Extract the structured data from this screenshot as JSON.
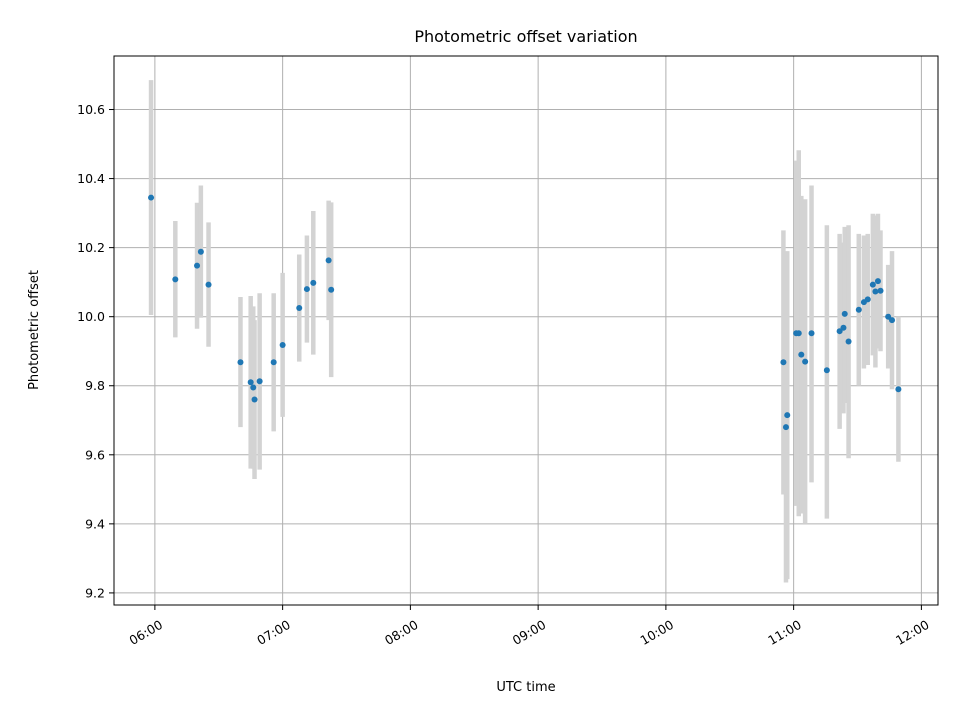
{
  "chart_data": {
    "type": "scatter",
    "title": "Photometric offset variation",
    "xlabel": "UTC time",
    "ylabel": "Photometric offset",
    "x_unit": "hours UTC",
    "xlim": [
      5.68,
      12.13
    ],
    "ylim": [
      9.165,
      10.755
    ],
    "x_ticks": [
      {
        "value": 6,
        "label": "06:00"
      },
      {
        "value": 7,
        "label": "07:00"
      },
      {
        "value": 8,
        "label": "08:00"
      },
      {
        "value": 9,
        "label": "09:00"
      },
      {
        "value": 10,
        "label": "10:00"
      },
      {
        "value": 11,
        "label": "11:00"
      },
      {
        "value": 12,
        "label": "12:00"
      }
    ],
    "y_ticks": [
      {
        "value": 9.2,
        "label": "9.2"
      },
      {
        "value": 9.4,
        "label": "9.4"
      },
      {
        "value": 9.6,
        "label": "9.6"
      },
      {
        "value": 9.8,
        "label": "9.8"
      },
      {
        "value": 10.0,
        "label": "10.0"
      },
      {
        "value": 10.2,
        "label": "10.2"
      },
      {
        "value": 10.4,
        "label": "10.4"
      },
      {
        "value": 10.6,
        "label": "10.6"
      }
    ],
    "grid": true,
    "point_color": "#1f77b4",
    "errorbar_color": "#d3d3d3",
    "points": [
      {
        "x": 5.97,
        "y": 10.345,
        "lo": 10.005,
        "hi": 10.685
      },
      {
        "x": 6.16,
        "y": 10.108,
        "lo": 9.94,
        "hi": 10.277
      },
      {
        "x": 6.33,
        "y": 10.148,
        "lo": 9.965,
        "hi": 10.33
      },
      {
        "x": 6.36,
        "y": 10.188,
        "lo": 9.997,
        "hi": 10.38
      },
      {
        "x": 6.42,
        "y": 10.093,
        "lo": 9.913,
        "hi": 10.273
      },
      {
        "x": 6.67,
        "y": 9.868,
        "lo": 9.68,
        "hi": 10.057
      },
      {
        "x": 6.75,
        "y": 9.81,
        "lo": 9.56,
        "hi": 10.06
      },
      {
        "x": 6.77,
        "y": 9.795,
        "lo": 9.56,
        "hi": 10.03
      },
      {
        "x": 6.78,
        "y": 9.76,
        "lo": 9.53,
        "hi": 9.99
      },
      {
        "x": 6.82,
        "y": 9.813,
        "lo": 9.557,
        "hi": 10.068
      },
      {
        "x": 6.93,
        "y": 9.868,
        "lo": 9.668,
        "hi": 10.068
      },
      {
        "x": 7.0,
        "y": 9.918,
        "lo": 9.71,
        "hi": 10.127
      },
      {
        "x": 7.13,
        "y": 10.025,
        "lo": 9.87,
        "hi": 10.18
      },
      {
        "x": 7.19,
        "y": 10.08,
        "lo": 9.925,
        "hi": 10.235
      },
      {
        "x": 7.24,
        "y": 10.098,
        "lo": 9.89,
        "hi": 10.306
      },
      {
        "x": 7.36,
        "y": 10.163,
        "lo": 9.99,
        "hi": 10.336
      },
      {
        "x": 7.38,
        "y": 10.078,
        "lo": 9.825,
        "hi": 10.331
      },
      {
        "x": 10.92,
        "y": 9.868,
        "lo": 9.485,
        "hi": 10.25
      },
      {
        "x": 10.94,
        "y": 9.68,
        "lo": 9.23,
        "hi": 10.13
      },
      {
        "x": 10.95,
        "y": 9.715,
        "lo": 9.24,
        "hi": 10.19
      },
      {
        "x": 11.02,
        "y": 9.952,
        "lo": 9.452,
        "hi": 10.452
      },
      {
        "x": 11.04,
        "y": 9.952,
        "lo": 9.422,
        "hi": 10.482
      },
      {
        "x": 11.06,
        "y": 9.89,
        "lo": 9.43,
        "hi": 10.35
      },
      {
        "x": 11.09,
        "y": 9.87,
        "lo": 9.4,
        "hi": 10.34
      },
      {
        "x": 11.14,
        "y": 9.952,
        "lo": 9.52,
        "hi": 10.38
      },
      {
        "x": 11.26,
        "y": 9.845,
        "lo": 9.415,
        "hi": 10.265
      },
      {
        "x": 11.36,
        "y": 9.958,
        "lo": 9.675,
        "hi": 10.24
      },
      {
        "x": 11.39,
        "y": 9.968,
        "lo": 9.72,
        "hi": 10.215
      },
      {
        "x": 11.4,
        "y": 10.008,
        "lo": 9.75,
        "hi": 10.26
      },
      {
        "x": 11.43,
        "y": 9.928,
        "lo": 9.59,
        "hi": 10.265
      },
      {
        "x": 11.51,
        "y": 10.02,
        "lo": 9.8,
        "hi": 10.24
      },
      {
        "x": 11.55,
        "y": 10.042,
        "lo": 9.85,
        "hi": 10.235
      },
      {
        "x": 11.58,
        "y": 10.05,
        "lo": 9.86,
        "hi": 10.24
      },
      {
        "x": 11.62,
        "y": 10.093,
        "lo": 9.888,
        "hi": 10.298
      },
      {
        "x": 11.64,
        "y": 10.073,
        "lo": 9.853,
        "hi": 10.293
      },
      {
        "x": 11.66,
        "y": 10.103,
        "lo": 9.908,
        "hi": 10.298
      },
      {
        "x": 11.68,
        "y": 10.075,
        "lo": 9.9,
        "hi": 10.25
      },
      {
        "x": 11.74,
        "y": 10.0,
        "lo": 9.85,
        "hi": 10.15
      },
      {
        "x": 11.77,
        "y": 9.99,
        "lo": 9.79,
        "hi": 10.19
      },
      {
        "x": 11.82,
        "y": 9.79,
        "lo": 9.58,
        "hi": 10.0
      }
    ]
  }
}
